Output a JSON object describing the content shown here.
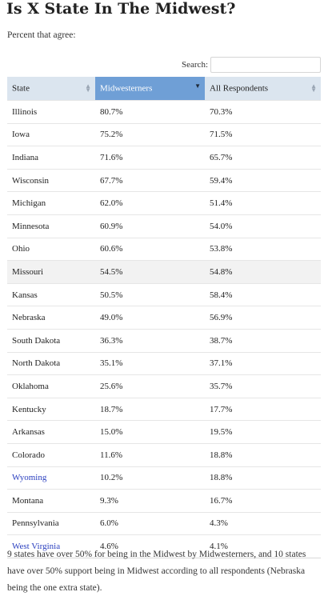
{
  "title": "Is X State In The Midwest?",
  "subtitle": "Percent that agree:",
  "search": {
    "label": "Search:",
    "value": "",
    "placeholder": ""
  },
  "columns": [
    "State",
    "Midwesterners",
    "All Respondents"
  ],
  "rows": [
    [
      "Illinois",
      "80.7%",
      "70.3%"
    ],
    [
      "Iowa",
      "75.2%",
      "71.5%"
    ],
    [
      "Indiana",
      "71.6%",
      "65.7%"
    ],
    [
      "Wisconsin",
      "67.7%",
      "59.4%"
    ],
    [
      "Michigan",
      "62.0%",
      "51.4%"
    ],
    [
      "Minnesota",
      "60.9%",
      "54.0%"
    ],
    [
      "Ohio",
      "60.6%",
      "53.8%"
    ],
    [
      "Missouri",
      "54.5%",
      "54.8%"
    ],
    [
      "Kansas",
      "50.5%",
      "58.4%"
    ],
    [
      "Nebraska",
      "49.0%",
      "56.9%"
    ],
    [
      "South Dakota",
      "36.3%",
      "38.7%"
    ],
    [
      "North Dakota",
      "35.1%",
      "37.1%"
    ],
    [
      "Oklahoma",
      "25.6%",
      "35.7%"
    ],
    [
      "Kentucky",
      "18.7%",
      "17.7%"
    ],
    [
      "Arkansas",
      "15.0%",
      "19.5%"
    ],
    [
      "Colorado",
      "11.6%",
      "18.8%"
    ],
    [
      "Wyoming",
      "10.2%",
      "18.8%"
    ],
    [
      "Montana",
      "9.3%",
      "16.7%"
    ],
    [
      "Pennsylvania",
      "6.0%",
      "4.3%"
    ],
    [
      "West Virginia",
      "4.6%",
      "4.1%"
    ]
  ],
  "linked_states": [
    "Wyoming",
    "West Virginia"
  ],
  "highlighted_row": "Missouri",
  "sorted_column": "Midwesterners",
  "colors": {
    "header_bg": "#dbe5ef",
    "active_header_bg": "#6f9fd6",
    "link": "#2a3fbf"
  },
  "footnote": "9 states have over 50% for being in the Midwest by Midwesterners, and 10 states have over 50% support being in Midwest according to all respondents (Nebraska being the one extra state)."
}
